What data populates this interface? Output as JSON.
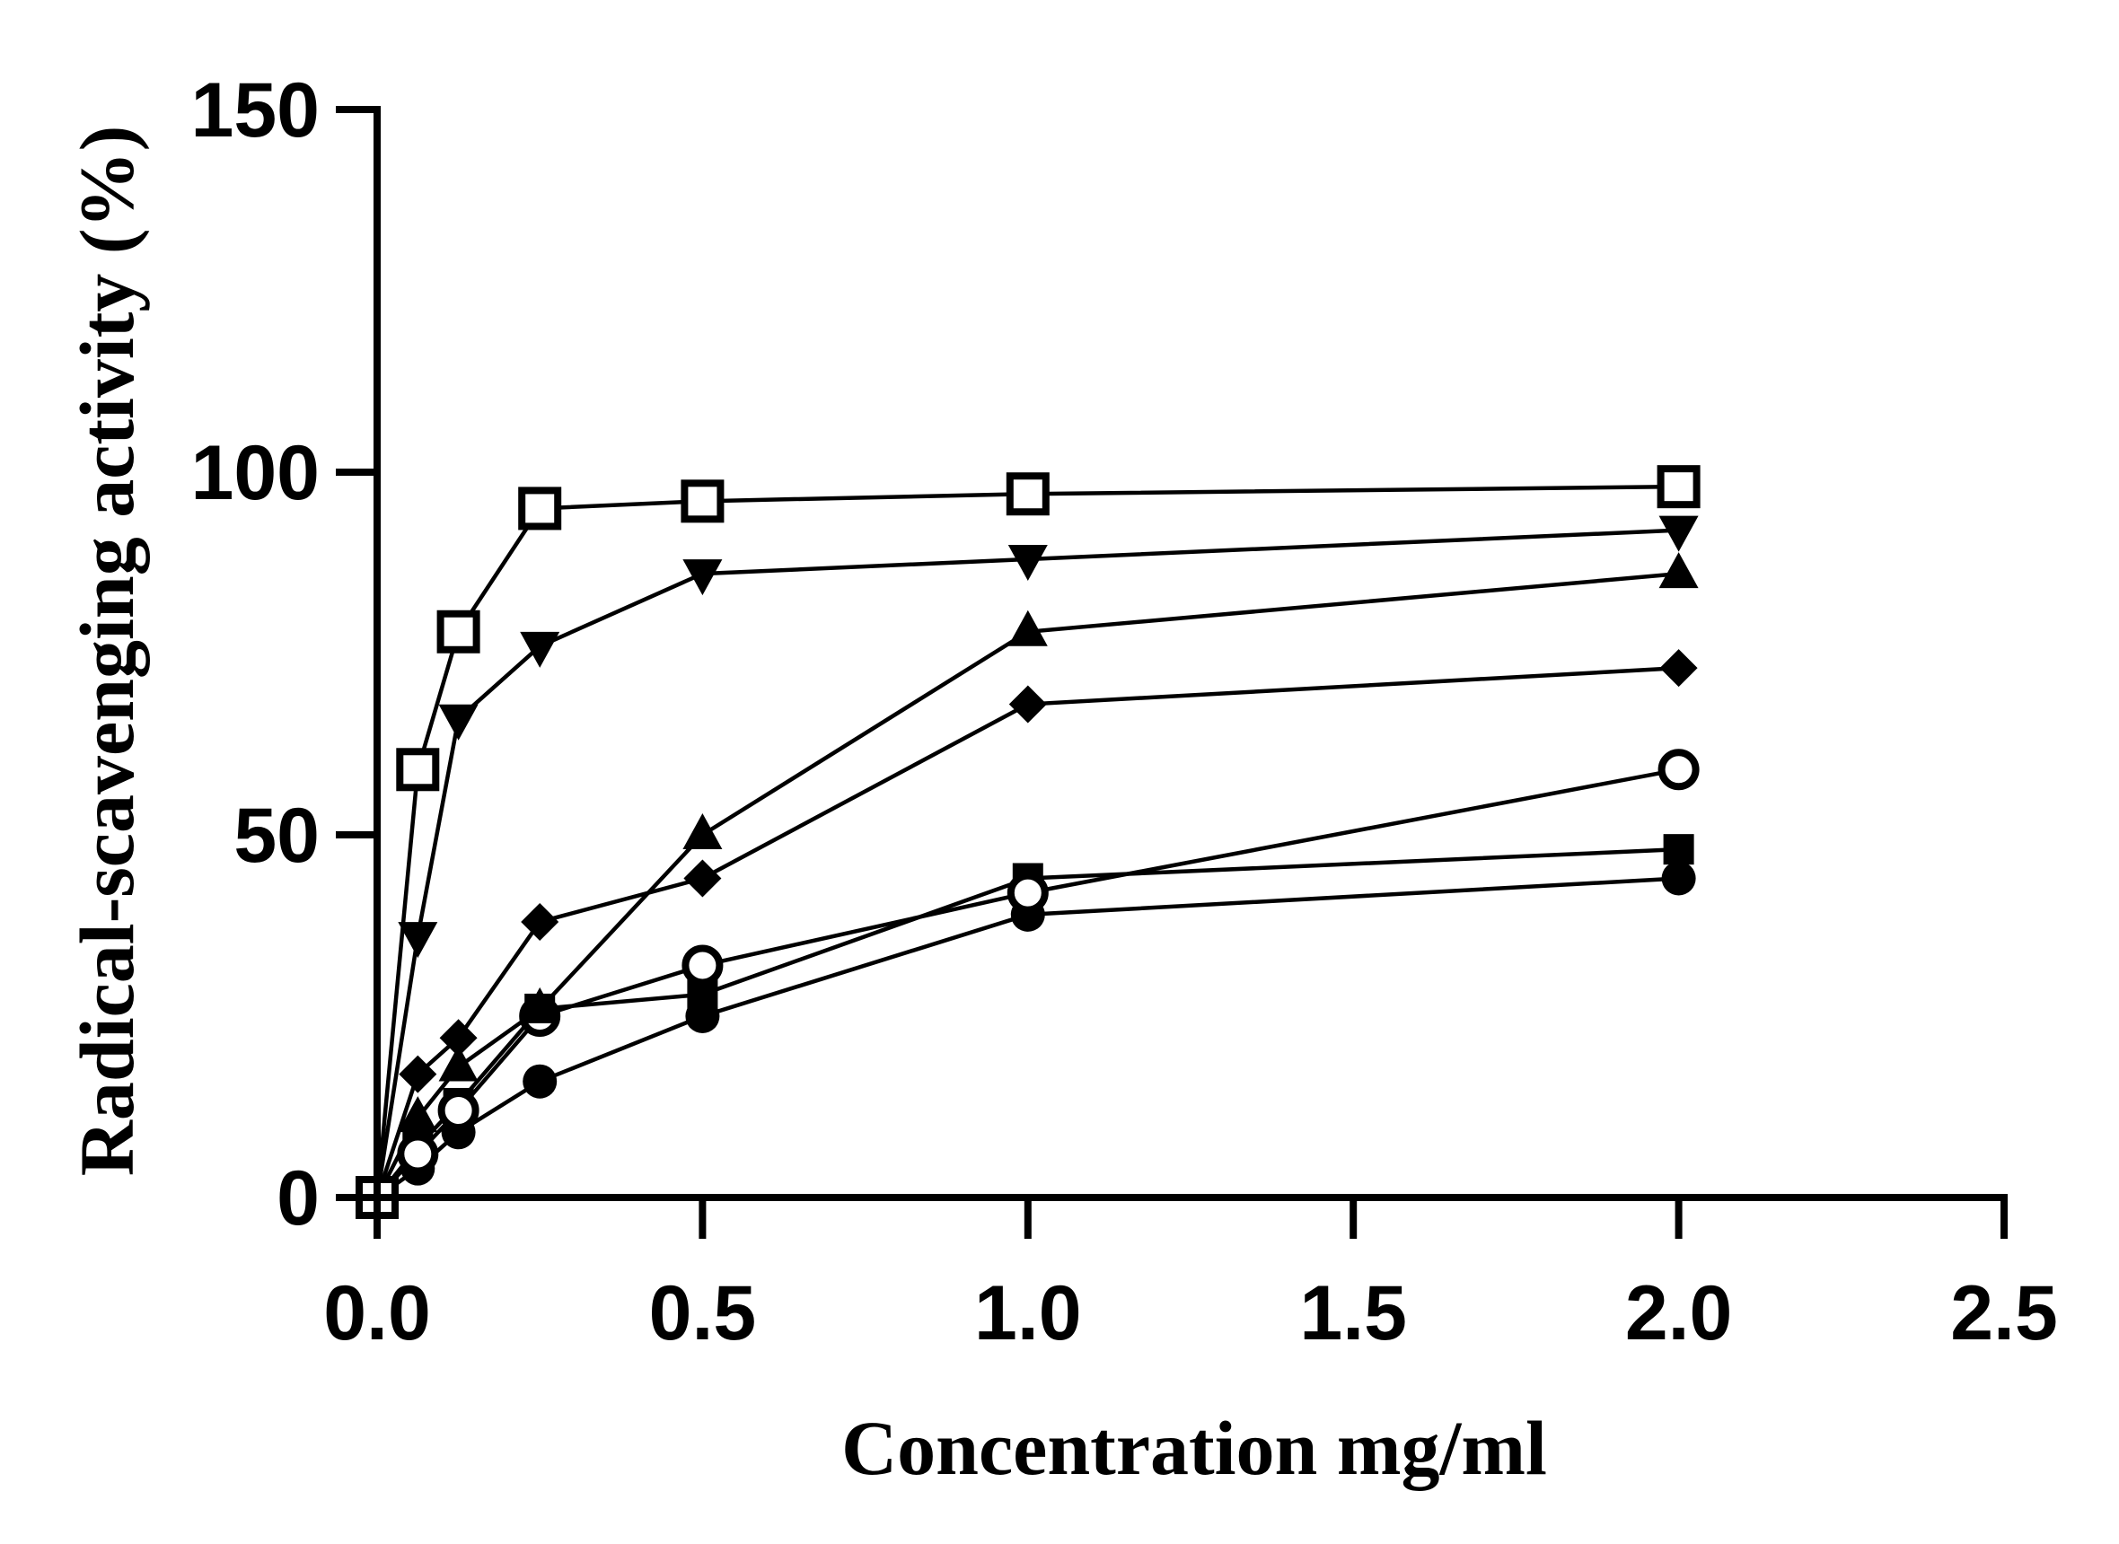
{
  "chart_data": {
    "type": "line",
    "title": "",
    "xlabel": "Concentration mg/ml",
    "ylabel": "Radical-scavenging activity (%)",
    "xlim": [
      0,
      2.5
    ],
    "ylim": [
      0,
      150
    ],
    "xticks": [
      0,
      0.5,
      1,
      1.5,
      2,
      2.5
    ],
    "xtick_labels": [
      "0.0",
      "0.5",
      "1.0",
      "1.5",
      "2.0",
      "2.5"
    ],
    "yticks": [
      0,
      50,
      100,
      150
    ],
    "ytick_labels": [
      "0",
      "50",
      "100",
      "150"
    ],
    "x": [
      0,
      0.0625,
      0.125,
      0.25,
      0.5,
      1,
      2
    ],
    "series": [
      {
        "name": "open-square",
        "marker": "square-open",
        "values": [
          0,
          59,
          78,
          95,
          96,
          97,
          98
        ]
      },
      {
        "name": "filled-down-triangle",
        "marker": "triangle-down",
        "values": [
          0,
          36,
          66,
          76,
          86,
          88,
          92
        ]
      },
      {
        "name": "filled-up-triangle",
        "marker": "triangle-up",
        "values": [
          0,
          11,
          18,
          26,
          50,
          78,
          86
        ]
      },
      {
        "name": "filled-diamond",
        "marker": "diamond",
        "values": [
          0,
          17,
          22,
          38,
          44,
          68,
          73
        ]
      },
      {
        "name": "open-circle",
        "marker": "circle-open",
        "values": [
          0,
          6,
          12,
          25,
          32,
          42,
          59
        ]
      },
      {
        "name": "filled-square",
        "marker": "square",
        "values": [
          0,
          7,
          13,
          26,
          28,
          44,
          48
        ]
      },
      {
        "name": "filled-circle",
        "marker": "circle",
        "values": [
          0,
          4,
          9,
          16,
          25,
          39,
          44
        ]
      }
    ]
  }
}
